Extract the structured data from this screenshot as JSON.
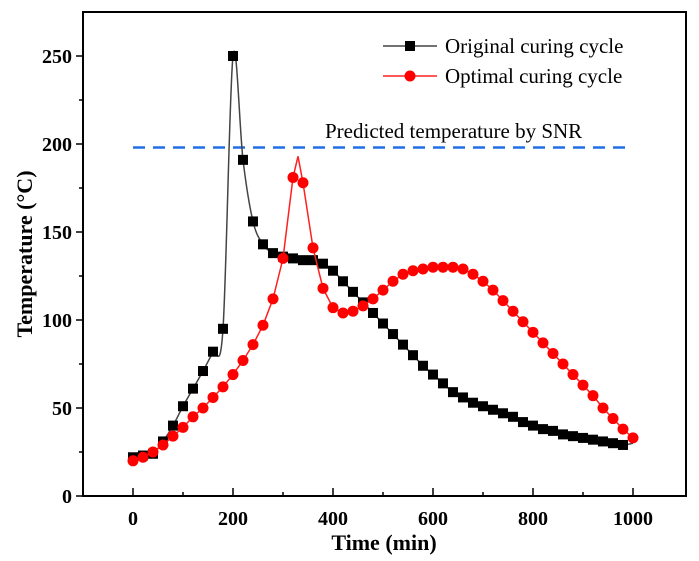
{
  "chart_data": {
    "type": "line",
    "xlabel": "Time (min)",
    "ylabel": "Temperature (°C)",
    "xlim": [
      -100,
      1100
    ],
    "ylim": [
      0,
      275
    ],
    "xticks": [
      0,
      200,
      400,
      600,
      800,
      1000
    ],
    "yticks": [
      0,
      50,
      100,
      150,
      200,
      250
    ],
    "grid": false,
    "legend_position": "top-right",
    "series": [
      {
        "name": "Original curing cycle",
        "color": "#000000",
        "line_color": "#444444",
        "marker": "square",
        "x": [
          0,
          20,
          40,
          60,
          80,
          100,
          120,
          140,
          160,
          180,
          200,
          220,
          240,
          260,
          280,
          300,
          320,
          340,
          360,
          380,
          400,
          420,
          440,
          460,
          480,
          500,
          520,
          540,
          560,
          580,
          600,
          620,
          640,
          660,
          680,
          700,
          720,
          740,
          760,
          780,
          800,
          820,
          840,
          860,
          880,
          900,
          920,
          940,
          960,
          980
        ],
        "y": [
          22,
          23,
          24,
          31,
          40,
          51,
          61,
          71,
          82,
          95,
          250,
          191,
          156,
          143,
          138,
          136,
          135,
          134,
          134,
          132,
          128,
          122,
          116,
          110,
          104,
          98,
          92,
          86,
          80,
          74,
          69,
          64,
          59,
          56,
          53,
          51,
          49,
          47,
          45,
          42,
          40,
          38,
          37,
          35,
          34,
          33,
          32,
          31,
          30,
          29
        ]
      },
      {
        "name": "Optimal curing cycle",
        "color": "#ff0000",
        "line_color": "#ff2020",
        "marker": "circle",
        "x": [
          0,
          20,
          40,
          60,
          80,
          100,
          120,
          140,
          160,
          180,
          200,
          220,
          240,
          260,
          280,
          300,
          320,
          340,
          360,
          380,
          400,
          420,
          440,
          460,
          480,
          500,
          520,
          540,
          560,
          580,
          600,
          620,
          640,
          660,
          680,
          700,
          720,
          740,
          760,
          780,
          800,
          820,
          840,
          860,
          880,
          900,
          920,
          940,
          960,
          980,
          1000
        ],
        "y": [
          20,
          22,
          25,
          29,
          34,
          39,
          45,
          50,
          56,
          62,
          69,
          77,
          86,
          97,
          112,
          135,
          181,
          178,
          141,
          118,
          107,
          104,
          105,
          108,
          112,
          117,
          122,
          126,
          128,
          129,
          130,
          130,
          130,
          129,
          126,
          122,
          117,
          111,
          105,
          99,
          93,
          87,
          81,
          75,
          69,
          63,
          57,
          50,
          44,
          38,
          33
        ]
      }
    ],
    "reference_line": {
      "label": "Predicted temperature by SNR",
      "y": 198,
      "x_range": [
        0,
        1000
      ],
      "color": "#1f6fe5",
      "style": "dashed"
    }
  }
}
